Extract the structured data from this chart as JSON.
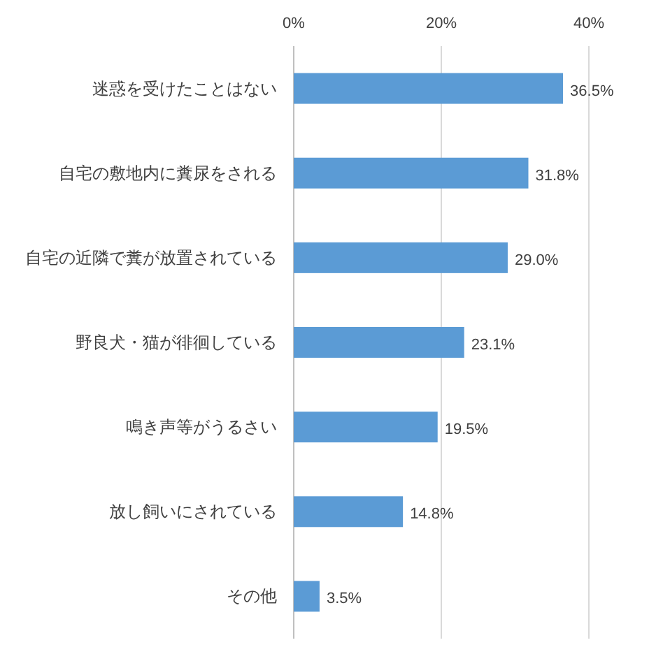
{
  "chart_data": {
    "type": "bar",
    "orientation": "horizontal",
    "categories": [
      "迷惑を受けたことはない",
      "自宅の敷地内に糞尿をされる",
      "自宅の近隣で糞が放置されている",
      "野良犬・猫が徘徊している",
      "鳴き声等がうるさい",
      "放し飼いにされている",
      "その他"
    ],
    "values": [
      36.5,
      31.8,
      29.0,
      23.1,
      19.5,
      14.8,
      3.5
    ],
    "value_labels": [
      "36.5%",
      "31.8%",
      "29.0%",
      "23.1%",
      "19.5%",
      "14.8%",
      "3.5%"
    ],
    "color": "#5b9bd5",
    "xlim": [
      0,
      40
    ],
    "xticks": [
      {
        "value": 0,
        "label": "0%"
      },
      {
        "value": 20,
        "label": "20%"
      },
      {
        "value": 40,
        "label": "40%"
      }
    ],
    "grid": "x"
  }
}
